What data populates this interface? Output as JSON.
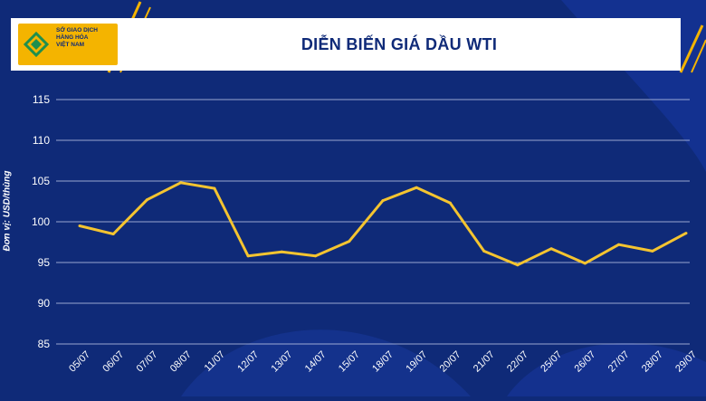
{
  "header": {
    "logo_text": "SỞ GIAO DỊCH\nHÀNG HÓA\nVIỆT NAM",
    "title": "DIỄN BIẾN GIÁ DẦU WTI"
  },
  "colors": {
    "background": "#0f2a78",
    "line": "#f4c430",
    "grid": "#c9d2ee",
    "accent": "#f4b400"
  },
  "chart_data": {
    "type": "line",
    "title": "DIỄN BIẾN GIÁ DẦU WTI",
    "xlabel": "",
    "ylabel": "Đơn vị: USD/thùng",
    "categories": [
      "05/07",
      "06/07",
      "07/07",
      "08/07",
      "11/07",
      "12/07",
      "13/07",
      "14/07",
      "15/07",
      "18/07",
      "19/07",
      "20/07",
      "21/07",
      "22/07",
      "25/07",
      "26/07",
      "27/07",
      "28/07",
      "29/07"
    ],
    "series": [
      {
        "values": [
          99.5,
          98.5,
          102.7,
          104.8,
          104.1,
          95.8,
          96.3,
          95.8,
          97.6,
          102.6,
          104.2,
          102.3,
          96.4,
          94.7,
          96.7,
          94.9,
          97.2,
          96.4,
          98.6
        ]
      }
    ],
    "ylim": [
      85,
      115
    ],
    "yticks": [
      85,
      90,
      95,
      100,
      105,
      110,
      115
    ],
    "grid": true,
    "legend": "none"
  }
}
